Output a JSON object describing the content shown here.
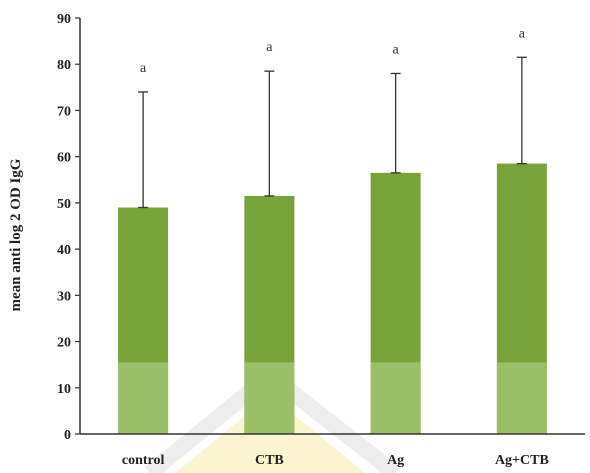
{
  "chart_data": {
    "type": "bar",
    "categories": [
      "control",
      "CTB",
      "Ag",
      "Ag+CTB"
    ],
    "values": [
      49,
      51.5,
      56.5,
      58.5
    ],
    "error_upper": [
      74,
      78.5,
      78,
      81.5
    ],
    "significance_labels": [
      "a",
      "a",
      "a",
      "a"
    ],
    "title": "",
    "xlabel": "",
    "ylabel": "mean anti log 2 OD IgG",
    "ylim": [
      0,
      90
    ],
    "yticks": [
      "0",
      "10",
      "20",
      "30",
      "40",
      "50",
      "60",
      "70",
      "80",
      "90"
    ],
    "grid": false,
    "legend": "none",
    "bar_color": "#77a33a",
    "bar_color_light": "#a7c77a",
    "error_bar_color": "#333333",
    "axis_color": "#333333"
  }
}
